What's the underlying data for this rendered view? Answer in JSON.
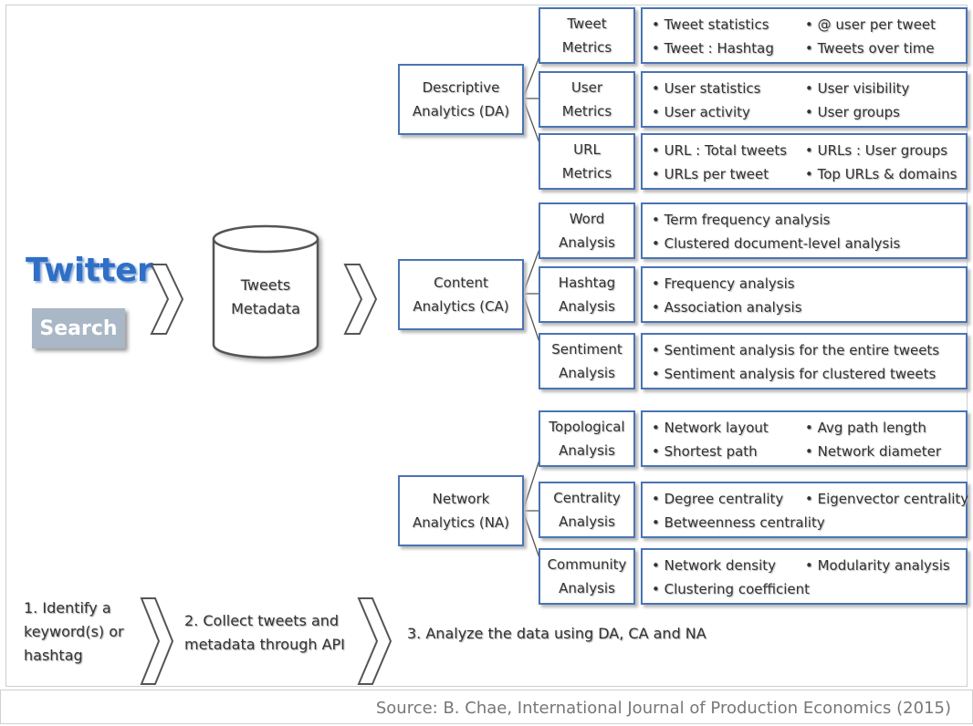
{
  "source": "Source: B. Chae, International Journal of Production Economics (2015)",
  "input": {
    "twitter": "Twitter",
    "search": "Search",
    "database": [
      "Tweets",
      "Metadata"
    ]
  },
  "analytics": [
    {
      "name": [
        "Descriptive",
        "Analytics (DA)"
      ],
      "modules": [
        {
          "name": [
            "Tweet",
            "Metrics"
          ],
          "items": [
            "Tweet statistics",
            "@ user per tweet",
            "Tweet : Hashtag",
            "Tweets over time"
          ]
        },
        {
          "name": [
            "User",
            "Metrics"
          ],
          "items": [
            "User statistics",
            "User visibility",
            "User activity",
            "User groups"
          ]
        },
        {
          "name": [
            "URL",
            "Metrics"
          ],
          "items": [
            "URL :  Total tweets",
            "URLs : User groups",
            "URLs per tweet",
            "Top URLs & domains"
          ]
        }
      ]
    },
    {
      "name": [
        "Content",
        "Analytics (CA)"
      ],
      "modules": [
        {
          "name": [
            "Word",
            "Analysis"
          ],
          "items": [
            "Term frequency analysis",
            "Clustered document-level analysis"
          ]
        },
        {
          "name": [
            "Hashtag",
            "Analysis"
          ],
          "items": [
            "Frequency analysis",
            "Association analysis"
          ]
        },
        {
          "name": [
            "Sentiment",
            "Analysis"
          ],
          "items": [
            "Sentiment analysis for the entire tweets",
            "Sentiment analysis for clustered tweets"
          ]
        }
      ]
    },
    {
      "name": [
        "Network",
        "Analytics (NA)"
      ],
      "modules": [
        {
          "name": [
            "Topological",
            "Analysis"
          ],
          "items": [
            "Network layout",
            "Avg path length",
            "Shortest path",
            "Network diameter"
          ]
        },
        {
          "name": [
            "Centrality",
            "Analysis"
          ],
          "items": [
            "Degree centrality",
            "Eigenvector centrality",
            "Betweenness centrality"
          ]
        },
        {
          "name": [
            "Community",
            "Analysis"
          ],
          "items": [
            "Network density",
            "Modularity analysis",
            "Clustering coefficient"
          ]
        }
      ]
    }
  ],
  "steps": [
    [
      "1. Identify a",
      "keyword(s) or",
      "hashtag"
    ],
    [
      "2. Collect tweets and",
      "metadata through API"
    ],
    [
      "3. Analyze the data using DA, CA and NA"
    ]
  ]
}
